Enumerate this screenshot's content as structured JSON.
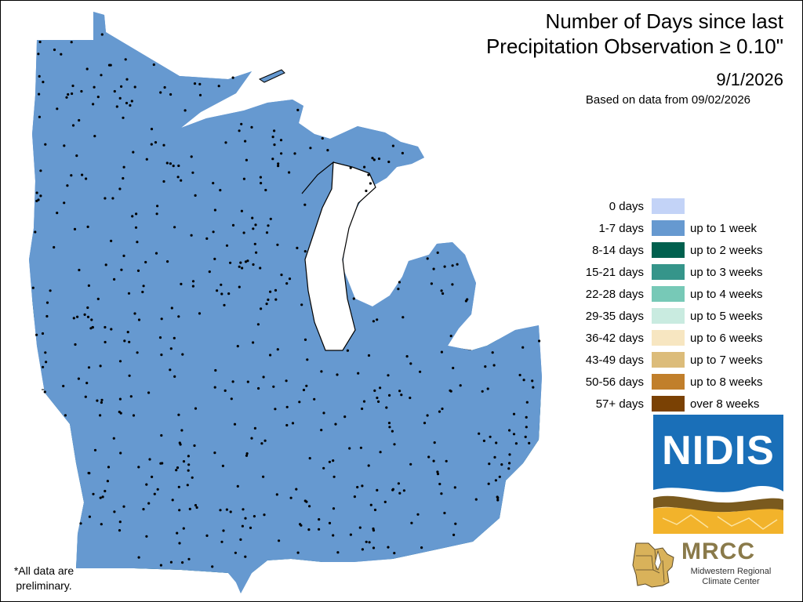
{
  "title": {
    "line1": "Number of Days since last",
    "line2": "Precipitation Observation ≥ 0.10\"",
    "date": "9/1/2026",
    "based_on": "Based on data from 09/02/2026"
  },
  "legend": [
    {
      "days": "0 days",
      "weeks": "",
      "color": "#c3d3f7"
    },
    {
      "days": "1-7 days",
      "weeks": "up to 1 week",
      "color": "#6699d0"
    },
    {
      "days": "8-14 days",
      "weeks": "up to 2 weeks",
      "color": "#00604e"
    },
    {
      "days": "15-21 days",
      "weeks": "up to 3 weeks",
      "color": "#35958a"
    },
    {
      "days": "22-28 days",
      "weeks": "up to 4 weeks",
      "color": "#77c9b7"
    },
    {
      "days": "29-35 days",
      "weeks": "up to 5 weeks",
      "color": "#c9ebe0"
    },
    {
      "days": "36-42 days",
      "weeks": "up to 6 weeks",
      "color": "#f7e6c1"
    },
    {
      "days": "43-49 days",
      "weeks": "up to 7 weeks",
      "color": "#dcbc7a"
    },
    {
      "days": "50-56 days",
      "weeks": "up to 8 weeks",
      "color": "#c17f2b"
    },
    {
      "days": "57+ days",
      "weeks": "over 8 weeks",
      "color": "#7a4104"
    }
  ],
  "logos": {
    "nidis": "NIDIS",
    "mrcc": "MRCC",
    "mrcc_line1": "Midwestern Regional",
    "mrcc_line2": "Climate Center"
  },
  "note": {
    "line1": "*All data are",
    "line2": "preliminary."
  }
}
